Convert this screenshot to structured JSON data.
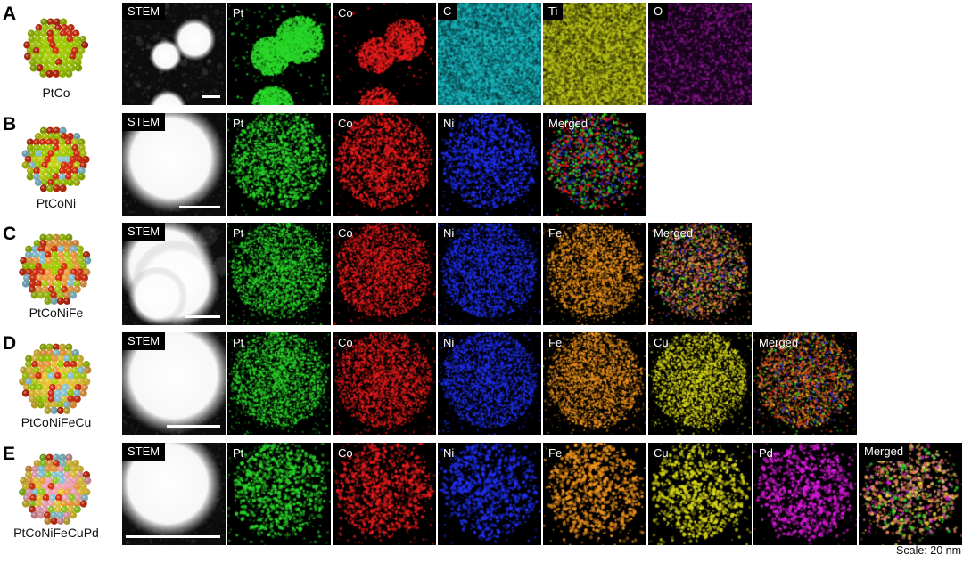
{
  "figure": {
    "scale_note": "Scale: 20 nm",
    "rows": [
      {
        "letter": "A",
        "compound": "PtCo",
        "model_atom_colors": [
          "#d83210",
          "#a2cc04",
          "#a2cc04",
          "#c22a0e",
          "#b2d414"
        ],
        "panels": [
          {
            "label": "STEM",
            "name": "stem",
            "type": "stem",
            "label_box": true,
            "scalebar_frac": 0.18,
            "speckle": true,
            "blobs": [
              {
                "x": 0.42,
                "y": 0.52,
                "r": 0.11
              },
              {
                "x": 0.7,
                "y": 0.36,
                "r": 0.145
              },
              {
                "x": 0.44,
                "y": 1.04,
                "r": 0.13
              }
            ]
          },
          {
            "label": "Pt",
            "name": "pt",
            "type": "blobs",
            "color": "#2ad82a",
            "blobs": [
              {
                "x": 0.42,
                "y": 0.52,
                "r": 0.14
              },
              {
                "x": 0.7,
                "y": 0.36,
                "r": 0.17
              },
              {
                "x": 0.44,
                "y": 1.02,
                "r": 0.15
              }
            ]
          },
          {
            "label": "Co",
            "name": "co",
            "type": "blobs",
            "color": "#e81c1c",
            "dim": true,
            "blobs": [
              {
                "x": 0.42,
                "y": 0.52,
                "r": 0.13
              },
              {
                "x": 0.7,
                "y": 0.36,
                "r": 0.15
              },
              {
                "x": 0.44,
                "y": 1.02,
                "r": 0.14
              }
            ]
          },
          {
            "label": "C",
            "name": "c",
            "type": "uniform",
            "base": "#0b5f66",
            "color": "#19b8be",
            "label_box": true
          },
          {
            "label": "Ti",
            "name": "ti",
            "type": "uniform",
            "base": "#53560b",
            "color": "#bcc616",
            "label_box": true
          },
          {
            "label": "O",
            "name": "o",
            "type": "uniform",
            "base": "#16031a",
            "color": "#9a1aa0",
            "label_box": true,
            "sparse": true
          }
        ]
      },
      {
        "letter": "B",
        "compound": "PtCoNi",
        "model_atom_colors": [
          "#a2cc04",
          "#d83210",
          "#8cc8d8",
          "#a2cc04",
          "#c6d414",
          "#d83210"
        ],
        "panels": [
          {
            "label": "STEM",
            "name": "stem",
            "type": "stem",
            "label_box": true,
            "scalebar_frac": 0.4,
            "blobs": [
              {
                "x": 0.47,
                "y": 0.44,
                "r": 0.37
              }
            ]
          },
          {
            "label": "Pt",
            "name": "pt",
            "type": "cluster",
            "color": "#2ad82a",
            "tier": "medium"
          },
          {
            "label": "Co",
            "name": "co",
            "type": "cluster",
            "color": "#e81c1c",
            "tier": "medium"
          },
          {
            "label": "Ni",
            "name": "ni",
            "type": "cluster",
            "color": "#2030f0",
            "tier": "medium"
          },
          {
            "label": "Merged",
            "name": "merged",
            "type": "merged",
            "tier": "medium",
            "colors": [
              "#2ad82a",
              "#e81c1c",
              "#2030f0",
              "#2ad82a",
              "#e81c1c"
            ]
          }
        ]
      },
      {
        "letter": "C",
        "compound": "PtCoNiFe",
        "model_atom_colors": [
          "#f0a040",
          "#a2cc04",
          "#d83210",
          "#8cc8d8",
          "#f0a040",
          "#b2d414"
        ],
        "panels": [
          {
            "label": "STEM",
            "name": "stem",
            "type": "stem",
            "label_box": true,
            "scalebar_frac": 0.34,
            "satellites": true,
            "blobs": [
              {
                "x": 0.42,
                "y": 0.42,
                "r": 0.33
              },
              {
                "x": 0.52,
                "y": 0.6,
                "r": 0.3
              },
              {
                "x": 0.34,
                "y": 0.72,
                "r": 0.2
              }
            ]
          },
          {
            "label": "Pt",
            "name": "pt",
            "type": "cluster",
            "color": "#2ad82a",
            "tier": "dense"
          },
          {
            "label": "Co",
            "name": "co",
            "type": "cluster",
            "color": "#e81c1c",
            "tier": "dense"
          },
          {
            "label": "Ni",
            "name": "ni",
            "type": "cluster",
            "color": "#2030f0",
            "tier": "dense"
          },
          {
            "label": "Fe",
            "name": "fe",
            "type": "cluster",
            "color": "#f0941c",
            "tier": "dense"
          },
          {
            "label": "Merged",
            "name": "merged",
            "type": "merged",
            "tier": "dense",
            "colors": [
              "#f08040",
              "#e84040",
              "#f0a030",
              "#e86060",
              "#2ad82a",
              "#d8d820",
              "#2030f0",
              "#f08040"
            ]
          }
        ]
      },
      {
        "letter": "D",
        "compound": "PtCoNiFeCu",
        "model_atom_colors": [
          "#e8c838",
          "#a2cc04",
          "#d83210",
          "#8cc8d8",
          "#f0a040",
          "#e8c838",
          "#b2d414"
        ],
        "panels": [
          {
            "label": "STEM",
            "name": "stem",
            "type": "stem",
            "label_box": true,
            "scalebar_frac": 0.52,
            "blobs": [
              {
                "x": 0.5,
                "y": 0.42,
                "r": 0.4
              }
            ]
          },
          {
            "label": "Pt",
            "name": "pt",
            "type": "cluster",
            "color": "#2ad82a",
            "tier": "dense"
          },
          {
            "label": "Co",
            "name": "co",
            "type": "cluster",
            "color": "#e81c1c",
            "tier": "dense"
          },
          {
            "label": "Ni",
            "name": "ni",
            "type": "cluster",
            "color": "#2030f0",
            "tier": "dense"
          },
          {
            "label": "Fe",
            "name": "fe",
            "type": "cluster",
            "color": "#f0941c",
            "tier": "dense"
          },
          {
            "label": "Cu",
            "name": "cu",
            "type": "cluster",
            "color": "#d8d818",
            "tier": "dense"
          },
          {
            "label": "Merged",
            "name": "merged",
            "type": "merged",
            "tier": "dense",
            "colors": [
              "#f06020",
              "#e83418",
              "#f08828",
              "#e84c20",
              "#f06020",
              "#d8d818",
              "#2ad82a",
              "#2030f0"
            ]
          }
        ]
      },
      {
        "letter": "E",
        "compound": "PtCoNiFeCuPd",
        "model_atom_colors": [
          "#e8c838",
          "#92d020",
          "#d83210",
          "#f0a4b4",
          "#8cc8d8",
          "#f0a040",
          "#e8c838",
          "#f0a4b4"
        ],
        "panels": [
          {
            "label": "STEM",
            "name": "stem",
            "type": "stem",
            "label_box": true,
            "scalebar_frac": 0.91,
            "blobs": [
              {
                "x": 0.44,
                "y": 0.4,
                "r": 0.37
              }
            ]
          },
          {
            "label": "Pt",
            "name": "pt",
            "type": "cluster",
            "color": "#2ad82a",
            "tier": "sparse"
          },
          {
            "label": "Co",
            "name": "co",
            "type": "cluster",
            "color": "#e81c1c",
            "tier": "sparse"
          },
          {
            "label": "Ni",
            "name": "ni",
            "type": "cluster",
            "color": "#2030f0",
            "tier": "sparse"
          },
          {
            "label": "Fe",
            "name": "fe",
            "type": "cluster",
            "color": "#f0941c",
            "tier": "sparse"
          },
          {
            "label": "Cu",
            "name": "cu",
            "type": "cluster",
            "color": "#d8d818",
            "tier": "sparse"
          },
          {
            "label": "Pd",
            "name": "pd",
            "type": "cluster",
            "color": "#da1ada",
            "tier": "sparse"
          },
          {
            "label": "Merged",
            "name": "merged",
            "type": "merged",
            "tier": "sparse",
            "label_box": true,
            "colors": [
              "#f08858",
              "#f06868",
              "#e8d858",
              "#f0a8a0",
              "#f08858",
              "#2ad82a",
              "#d818d8",
              "#d8d818"
            ]
          }
        ]
      }
    ]
  }
}
